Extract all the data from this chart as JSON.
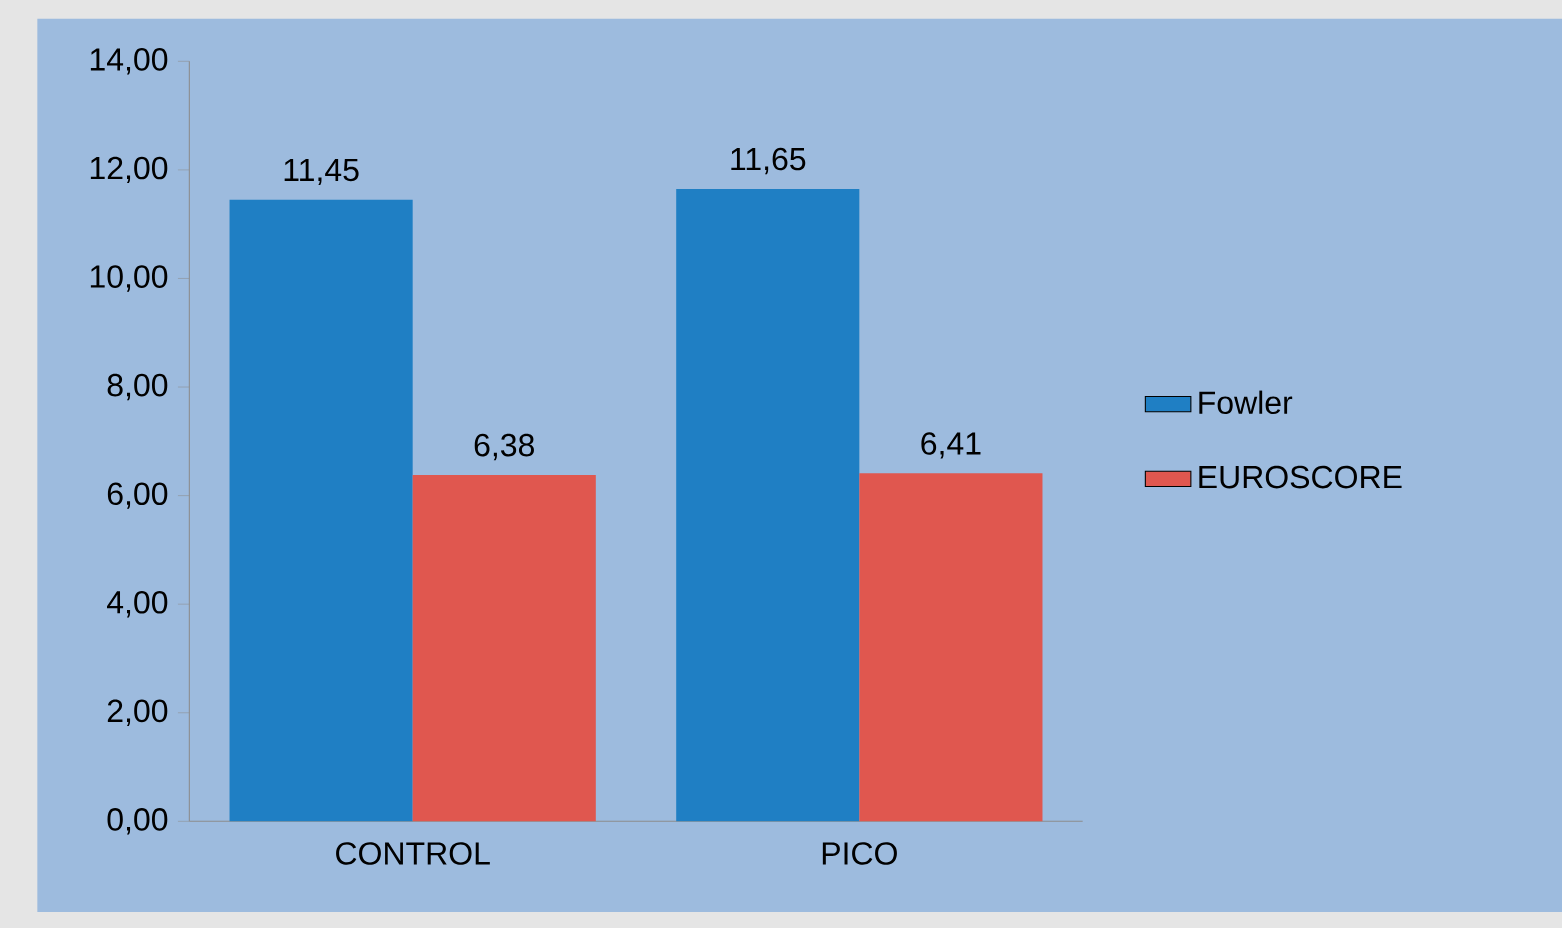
{
  "chart_data": {
    "type": "bar",
    "categories": [
      "CONTROL",
      "PICO"
    ],
    "series": [
      {
        "name": "Fowler",
        "color": "#1f7fc4",
        "values": [
          11.45,
          11.65
        ],
        "value_labels": [
          "11,45",
          "11,65"
        ]
      },
      {
        "name": "EUROSCORE",
        "color": "#e0574f",
        "values": [
          6.38,
          6.41
        ],
        "value_labels": [
          "6,38",
          "6,41"
        ]
      }
    ],
    "ylim": [
      0,
      14
    ],
    "yticks": [
      {
        "value": 0,
        "label": "0,00"
      },
      {
        "value": 2,
        "label": "2,00"
      },
      {
        "value": 4,
        "label": "4,00"
      },
      {
        "value": 6,
        "label": "6,00"
      },
      {
        "value": 8,
        "label": "8,00"
      },
      {
        "value": 10,
        "label": "10,00"
      },
      {
        "value": 12,
        "label": "12,00"
      },
      {
        "value": 14,
        "label": "14,00"
      }
    ],
    "grid": false,
    "legend": "right"
  }
}
